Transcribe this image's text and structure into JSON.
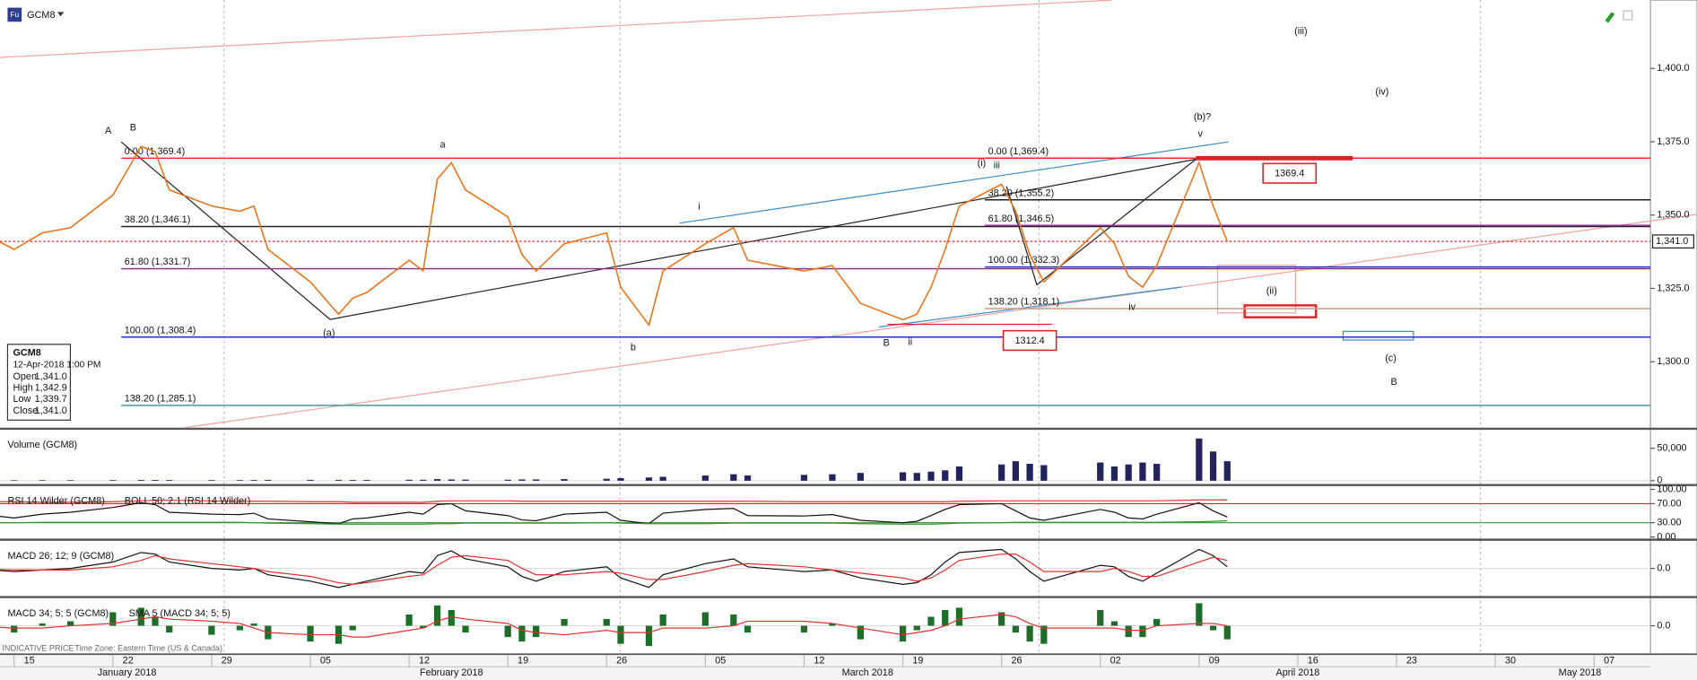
{
  "chart_data": [
    {
      "type": "line",
      "title": "GCM8",
      "icon": "Fu",
      "color": "#e8741a",
      "x": [
        "2018-01-12",
        "2018-01-15",
        "2018-01-17",
        "2018-01-19",
        "2018-01-22",
        "2018-01-24",
        "2018-01-25",
        "2018-01-26",
        "2018-01-29",
        "2018-01-31",
        "2018-02-01",
        "2018-02-02",
        "2018-02-05",
        "2018-02-07",
        "2018-02-08",
        "2018-02-09",
        "2018-02-12",
        "2018-02-13",
        "2018-02-14",
        "2018-02-15",
        "2018-02-16",
        "2018-02-19",
        "2018-02-20",
        "2018-02-21",
        "2018-02-23",
        "2018-02-26",
        "2018-02-27",
        "2018-03-01",
        "2018-03-02",
        "2018-03-05",
        "2018-03-07",
        "2018-03-08",
        "2018-03-12",
        "2018-03-14",
        "2018-03-16",
        "2018-03-19",
        "2018-03-20",
        "2018-03-21",
        "2018-03-22",
        "2018-03-23",
        "2018-03-26",
        "2018-03-27",
        "2018-03-28",
        "2018-03-29",
        "2018-04-02",
        "2018-04-03",
        "2018-04-04",
        "2018-04-05",
        "2018-04-06",
        "2018-04-09",
        "2018-04-10",
        "2018-04-11"
      ],
      "values": [
        1345.7,
        1338.3,
        1343.9,
        1345.7,
        1356.8,
        1373.4,
        1371.6,
        1358.6,
        1353.1,
        1351.3,
        1353.1,
        1338.3,
        1327.2,
        1316.2,
        1321.7,
        1323.6,
        1334.6,
        1331.0,
        1362.3,
        1367.9,
        1358.6,
        1349.4,
        1336.5,
        1330.9,
        1340.2,
        1343.9,
        1325.4,
        1312.5,
        1330.9,
        1340.2,
        1345.7,
        1334.6,
        1330.9,
        1332.8,
        1319.9,
        1314.3,
        1316.2,
        1325.4,
        1338.3,
        1353.1,
        1360.5,
        1351.3,
        1336.5,
        1327.2,
        1345.7,
        1340.2,
        1329.1,
        1325.4,
        1332.8,
        1367.9,
        1353.1,
        1341.0
      ],
      "xlim": [
        "2018-01-14",
        "2018-05-11"
      ],
      "xticks": [
        {
          "value": "2018-01-15",
          "label": "15"
        },
        {
          "value": "2018-01-22",
          "label": "22"
        },
        {
          "value": "2018-01-29",
          "label": "29"
        },
        {
          "value": "2018-02-05",
          "label": "05"
        },
        {
          "value": "2018-02-12",
          "label": "12"
        },
        {
          "value": "2018-02-19",
          "label": "19"
        },
        {
          "value": "2018-02-26",
          "label": "26"
        },
        {
          "value": "2018-03-05",
          "label": "05"
        },
        {
          "value": "2018-03-12",
          "label": "12"
        },
        {
          "value": "2018-03-19",
          "label": "19"
        },
        {
          "value": "2018-03-26",
          "label": "26"
        },
        {
          "value": "2018-04-02",
          "label": "02"
        },
        {
          "value": "2018-04-09",
          "label": "09"
        },
        {
          "value": "2018-04-16",
          "label": "16"
        },
        {
          "value": "2018-04-23",
          "label": "23"
        },
        {
          "value": "2018-04-30",
          "label": "30"
        },
        {
          "value": "2018-05-07",
          "label": "07"
        }
      ],
      "x_month_labels": [
        {
          "value": "2018-01",
          "label": "January 2018"
        },
        {
          "value": "2018-02",
          "label": "February 2018"
        },
        {
          "value": "2018-03",
          "label": "March 2018"
        },
        {
          "value": "2018-04",
          "label": "April 2018"
        },
        {
          "value": "2018-05",
          "label": "May 2018"
        }
      ],
      "ylim": [
        1277.5,
        1423.3
      ],
      "yticks": [
        {
          "value": 1300,
          "label": "1,300.0"
        },
        {
          "value": 1325,
          "label": "1,325.0"
        },
        {
          "value": 1350,
          "label": "1,350.0"
        },
        {
          "value": 1375,
          "label": "1,375.0"
        },
        {
          "value": 1400,
          "label": "1,400.0"
        }
      ],
      "current_price": {
        "value": 1341.0,
        "label": "1,341.0",
        "color": "#d22"
      },
      "fib_sets": [
        {
          "levels": [
            {
              "label": "0.00 (1,369.4)",
              "value": 1369.4,
              "color": "#e8262a"
            },
            {
              "label": "38.20 (1,346.1)",
              "value": 1346.1,
              "color": "#222222"
            },
            {
              "label": "61.80 (1,331.7)",
              "value": 1331.7,
              "color": "#8a2a8a"
            },
            {
              "label": "100.00 (1,308.4)",
              "value": 1308.4,
              "color": "#2233cc"
            },
            {
              "label": "138.20 (1,285.1)",
              "value": 1285.1,
              "color": "#4a9a9a"
            }
          ]
        },
        {
          "levels": [
            {
              "label": "0.00 (1,369.4)",
              "value": 1369.4,
              "color": "#e8262a"
            },
            {
              "label": "38.20 (1,355.2)",
              "value": 1355.2,
              "color": "#222222"
            },
            {
              "label": "61.80 (1,346.5)",
              "value": 1346.5,
              "color": "#8a2a8a"
            },
            {
              "label": "100.00 (1,332.3)",
              "value": 1332.3,
              "color": "#2233cc"
            },
            {
              "label": "138.20 (1,318.1)",
              "value": 1318.1,
              "color": "#c89a8a"
            }
          ]
        }
      ],
      "boxes": [
        {
          "label": "1369.4",
          "value": 1369.4,
          "color": "#d22"
        },
        {
          "label": "1312.4",
          "value": 1312.4,
          "color": "#d22"
        }
      ],
      "wave_labels": [
        {
          "text": "A",
          "color": "#e02020"
        },
        {
          "text": "B",
          "color": "#1f9a2a"
        },
        {
          "text": "a",
          "color": "#3a8ac8"
        },
        {
          "text": "(a)",
          "color": "#3a8ac8"
        },
        {
          "text": "b",
          "color": "#3a8ac8"
        },
        {
          "text": "i",
          "color": "#3a8ac8"
        },
        {
          "text": "ii",
          "color": "#3a8ac8"
        },
        {
          "text": "(i)",
          "color": "#e02020"
        },
        {
          "text": "iii",
          "color": "#3a8ac8"
        },
        {
          "text": "iv",
          "color": "#3a8ac8"
        },
        {
          "text": "(b)?",
          "color": "#3a8ac8"
        },
        {
          "text": "v",
          "color": "#3a8ac8"
        },
        {
          "text": "B",
          "color": "#e02020"
        },
        {
          "text": "(ii)",
          "color": "#e02020"
        },
        {
          "text": "(iii)",
          "color": "#e02020"
        },
        {
          "text": "(iv)",
          "color": "#e02020"
        },
        {
          "text": "(c)",
          "color": "#3a8ac8"
        },
        {
          "text": "B",
          "color": "#3a8ac8"
        }
      ],
      "info": {
        "symbol": "GCM8",
        "datetime": "12-Apr-2018 1:00 PM",
        "rows": [
          [
            "Open",
            "1,341.0"
          ],
          [
            "High",
            "1,342.9"
          ],
          [
            "Low",
            "1,339.7"
          ],
          [
            "Close",
            "1,341.0"
          ]
        ]
      },
      "footer_notes": [
        "INDICATIVE PRICE",
        "Time Zone: Eastern Time (US & Canada)"
      ]
    },
    {
      "type": "bar",
      "title": "Volume (GCM8)",
      "color": "#23235e",
      "values": [
        800,
        800,
        900,
        900,
        1000,
        1200,
        1200,
        1100,
        1000,
        1000,
        1100,
        1200,
        1300,
        1300,
        1200,
        1200,
        1500,
        1500,
        2500,
        2000,
        1800,
        1500,
        2000,
        2000,
        2500,
        3000,
        4000,
        5000,
        6000,
        8000,
        10000,
        8000,
        9000,
        10000,
        12000,
        13000,
        12000,
        14000,
        16000,
        22000,
        25000,
        30000,
        26000,
        24000,
        28000,
        22000,
        25000,
        28000,
        26000,
        65000,
        45000,
        30000
      ],
      "ylim": [
        -5000,
        78300
      ],
      "yticks": [
        0,
        {
          "value": 50000,
          "label": "50,000"
        }
      ]
    },
    {
      "type": "line",
      "series": [
        {
          "name": "RSI 14 Wilder (GCM8)",
          "color": "#111111",
          "values": [
            50,
            40,
            48,
            52,
            62,
            72,
            68,
            52,
            48,
            47,
            50,
            38,
            32,
            28,
            38,
            40,
            52,
            48,
            68,
            70,
            55,
            45,
            36,
            34,
            48,
            52,
            35,
            28,
            50,
            58,
            60,
            45,
            44,
            47,
            35,
            30,
            33,
            45,
            58,
            68,
            70,
            55,
            40,
            35,
            58,
            52,
            40,
            38,
            48,
            72,
            55,
            42
          ]
        },
        {
          "name": "BOLL 50; 2.1 (RSI 14 Wilder)",
          "color": "#e03030",
          "values": [
            74,
            74,
            73,
            73,
            74,
            76,
            77,
            77,
            76,
            75,
            75,
            75,
            74,
            74,
            73,
            73,
            73,
            73,
            75,
            76,
            76,
            76,
            75,
            75,
            75,
            75,
            75,
            75,
            75,
            75,
            75,
            75,
            74,
            74,
            74,
            74,
            74,
            74,
            74,
            75,
            76,
            76,
            76,
            76,
            76,
            76,
            76,
            76,
            76,
            78,
            78,
            78
          ],
          "lower_color": "#2a9a2a",
          "lower": [
            30,
            30,
            31,
            31,
            31,
            31,
            31,
            31,
            31,
            31,
            30,
            29,
            28,
            27,
            27,
            27,
            27,
            27,
            28,
            28,
            29,
            29,
            29,
            29,
            29,
            30,
            29,
            28,
            28,
            28,
            29,
            29,
            29,
            29,
            28,
            27,
            27,
            27,
            28,
            29,
            30,
            31,
            31,
            31,
            31,
            31,
            31,
            31,
            31,
            32,
            33,
            34
          ]
        }
      ],
      "levels": [
        {
          "value": 70,
          "color": "#d22"
        },
        {
          "value": 30,
          "color": "#2a9a2a"
        }
      ],
      "ylim": [
        0,
        100
      ],
      "yticks": [
        {
          "value": 0,
          "label": "0.00"
        },
        {
          "value": 30,
          "label": "30.00"
        },
        {
          "value": 70,
          "label": "70.00"
        },
        {
          "value": 100,
          "label": "100.00"
        }
      ]
    },
    {
      "type": "line",
      "series": [
        {
          "name": "MACD 26; 12; 9 (GCM8)",
          "color": "#111111",
          "values": [
            0,
            -2,
            -1,
            0,
            4,
            10,
            9,
            4,
            0,
            -1,
            0,
            -4,
            -8,
            -12,
            -10,
            -8,
            -2,
            -3,
            8,
            11,
            6,
            1,
            -5,
            -8,
            -2,
            1,
            -6,
            -12,
            -4,
            3,
            6,
            1,
            -2,
            -1,
            -6,
            -10,
            -9,
            -4,
            4,
            10,
            12,
            6,
            -2,
            -8,
            2,
            1,
            -5,
            -8,
            -3,
            12,
            8,
            1
          ]
        },
        {
          "color": "#e03030",
          "values": [
            0,
            -1,
            -1,
            -1,
            1,
            5,
            8,
            6,
            3,
            1,
            0,
            -2,
            -5,
            -9,
            -10,
            -9,
            -5,
            -4,
            2,
            7,
            8,
            5,
            0,
            -4,
            -4,
            -2,
            -3,
            -7,
            -7,
            -2,
            2,
            3,
            1,
            -1,
            -3,
            -6,
            -8,
            -6,
            -1,
            5,
            9,
            9,
            4,
            -2,
            -2,
            0,
            -2,
            -5,
            -5,
            4,
            7,
            5
          ]
        }
      ],
      "ylim": [
        -17,
        17
      ],
      "yticks": [
        {
          "value": 0,
          "label": "0.0"
        }
      ]
    },
    {
      "type": "line",
      "series": [
        {
          "name": "MACD 34; 5; 5 (GCM8)",
          "color": "#1e6e2a",
          "style": "histogram",
          "values": [
            0,
            -3,
            1,
            2,
            6,
            8,
            4,
            -3,
            -4,
            -2,
            1,
            -6,
            -7,
            -8,
            -2,
            0,
            5,
            -1,
            9,
            7,
            -3,
            -5,
            -7,
            -5,
            3,
            3,
            -8,
            -9,
            5,
            6,
            5,
            -3,
            -3,
            1,
            -6,
            -7,
            -2,
            4,
            7,
            8,
            6,
            -3,
            -7,
            -8,
            7,
            2,
            -5,
            -5,
            3,
            10,
            -2,
            -6
          ]
        },
        {
          "name": "SMA 5 (MACD 34; 5; 5)",
          "color": "#e03030",
          "values": [
            0,
            -1,
            -1,
            0,
            1,
            3,
            4,
            3,
            2,
            1,
            -1,
            -3,
            -4,
            -4,
            -5,
            -5,
            -2,
            -1,
            2,
            4,
            3,
            1,
            -2,
            -3,
            -4,
            -2,
            -3,
            -3,
            -1,
            -1,
            0,
            2,
            2,
            1,
            -1,
            -4,
            -3,
            -2,
            0,
            3,
            5,
            4,
            1,
            -1,
            -1,
            -1,
            -2,
            -2,
            0,
            1,
            1,
            0
          ]
        }
      ],
      "ylim": [
        -12,
        12
      ],
      "yticks": [
        {
          "value": 0,
          "label": "0.0"
        }
      ]
    }
  ]
}
